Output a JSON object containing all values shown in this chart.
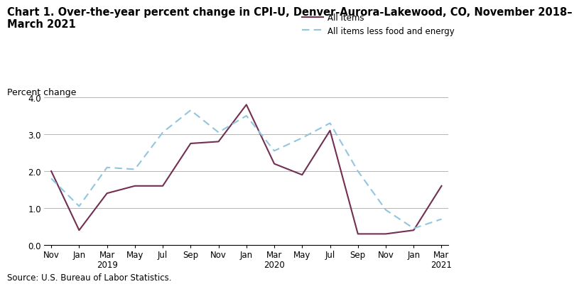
{
  "title_line1": "Chart 1. Over-the-year percent change in CPI-U, Denver-Aurora-Lakewood, CO, November 2018–",
  "title_line2": "March 2021",
  "ylabel_text": "Percent change",
  "source": "Source: U.S. Bureau of Labor Statistics.",
  "x_tick_labels": [
    "Nov",
    "Jan",
    "Mar\n2019",
    "May",
    "Jul",
    "Sep",
    "Nov",
    "Jan",
    "Mar\n2020",
    "May",
    "Jul",
    "Sep",
    "Nov",
    "Jan",
    "Mar\n2021"
  ],
  "x_tick_positions": [
    0,
    2,
    4,
    6,
    8,
    10,
    12,
    14,
    16,
    18,
    20,
    22,
    24,
    26,
    28
  ],
  "all_items": [
    2.0,
    0.4,
    1.4,
    1.6,
    1.6,
    2.75,
    2.8,
    3.8,
    2.2,
    1.9,
    3.1,
    0.3,
    0.3,
    0.4,
    1.6
  ],
  "all_items_less": [
    1.8,
    1.05,
    2.1,
    2.05,
    3.05,
    3.65,
    3.05,
    3.5,
    2.55,
    2.9,
    3.3,
    2.0,
    0.95,
    0.45,
    0.7
  ],
  "all_items_color": "#722F52",
  "all_items_less_color": "#92C5DE",
  "ylim": [
    0.0,
    4.0
  ],
  "yticks": [
    0.0,
    1.0,
    2.0,
    3.0,
    4.0
  ],
  "legend_all_items": "All items",
  "legend_all_items_less": "All items less food and energy",
  "title_fontsize": 10.5,
  "small_fontsize": 9,
  "tick_fontsize": 8.5,
  "source_fontsize": 8.5
}
